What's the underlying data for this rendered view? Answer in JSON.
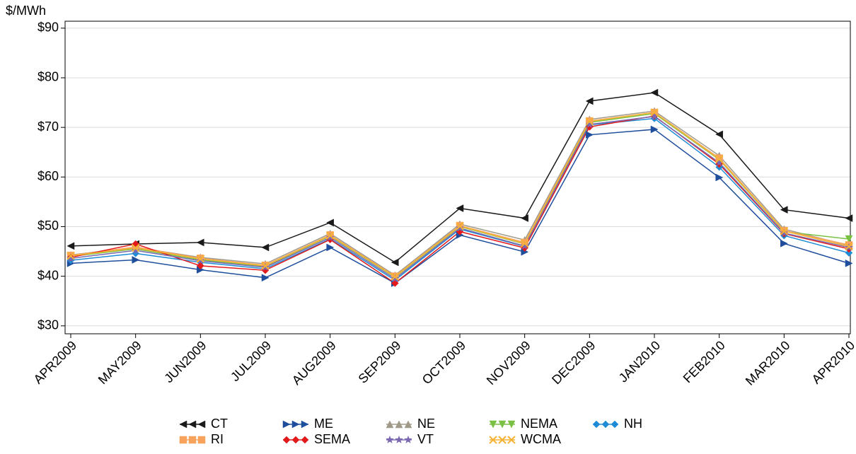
{
  "chart_data": {
    "type": "line",
    "y_axis_label": "$/MWh",
    "categories": [
      "APR2009",
      "MAY2009",
      "JUN2009",
      "JUL2009",
      "AUG2009",
      "SEP2009",
      "OCT2009",
      "NOV2009",
      "DEC2009",
      "JAN2010",
      "FEB2010",
      "MAR2010",
      "APR2010"
    ],
    "ylim": [
      28.4,
      91.4
    ],
    "yticks": [
      {
        "value": 30,
        "label": "$30"
      },
      {
        "value": 40,
        "label": "$40"
      },
      {
        "value": 50,
        "label": "$50"
      },
      {
        "value": 60,
        "label": "$60"
      },
      {
        "value": 70,
        "label": "$70"
      },
      {
        "value": 80,
        "label": "$80"
      },
      {
        "value": 90,
        "label": "$90"
      }
    ],
    "grid": true,
    "legend": "bottom",
    "series": [
      {
        "name": "CT",
        "color": "#1a1a1a",
        "marker": "triangle-left",
        "values": [
          46.1,
          46.5,
          46.8,
          45.8,
          50.8,
          42.8,
          53.7,
          51.7,
          75.3,
          77.0,
          68.6,
          53.4,
          51.7
        ]
      },
      {
        "name": "ME",
        "color": "#1f4e9c",
        "marker": "triangle-right",
        "values": [
          42.6,
          43.3,
          41.3,
          39.7,
          45.8,
          38.6,
          48.3,
          44.9,
          68.5,
          69.6,
          59.9,
          46.6,
          42.6
        ]
      },
      {
        "name": "NE",
        "color": "#a09a8a",
        "marker": "triangle-up",
        "values": [
          44.3,
          45.8,
          43.8,
          42.5,
          48.6,
          40.2,
          50.5,
          47.3,
          71.6,
          73.3,
          64.3,
          49.5,
          46.2
        ]
      },
      {
        "name": "NEMA",
        "color": "#7ac143",
        "marker": "triangle-down",
        "values": [
          44.0,
          45.5,
          43.3,
          42.0,
          48.1,
          39.8,
          50.0,
          46.5,
          71.0,
          72.8,
          63.5,
          49.0,
          47.5
        ]
      },
      {
        "name": "NH",
        "color": "#1f8dd6",
        "marker": "diamond",
        "values": [
          43.2,
          44.6,
          42.8,
          41.5,
          47.5,
          39.2,
          49.5,
          46.0,
          70.5,
          71.8,
          62.0,
          48.2,
          44.7
        ]
      },
      {
        "name": "RI",
        "color": "#f7a35c",
        "marker": "square",
        "values": [
          44.2,
          45.9,
          43.6,
          42.2,
          48.3,
          40.0,
          50.2,
          46.8,
          71.3,
          73.0,
          63.8,
          49.2,
          46.3
        ]
      },
      {
        "name": "SEMA",
        "color": "#e31a1c",
        "marker": "diamond",
        "values": [
          43.8,
          46.5,
          42.1,
          41.2,
          47.4,
          38.6,
          49.0,
          45.7,
          70.1,
          72.3,
          62.6,
          48.6,
          45.5
        ]
      },
      {
        "name": "VT",
        "color": "#7b68b0",
        "marker": "star",
        "values": [
          43.6,
          45.2,
          43.1,
          41.8,
          47.8,
          39.5,
          49.7,
          46.1,
          70.6,
          72.2,
          62.9,
          48.7,
          45.8
        ]
      },
      {
        "name": "WCMA",
        "color": "#f5b335",
        "marker": "x",
        "values": [
          44.1,
          45.7,
          43.5,
          42.1,
          48.2,
          39.9,
          50.1,
          46.6,
          71.2,
          73.0,
          63.6,
          49.1,
          46.0
        ]
      }
    ]
  }
}
